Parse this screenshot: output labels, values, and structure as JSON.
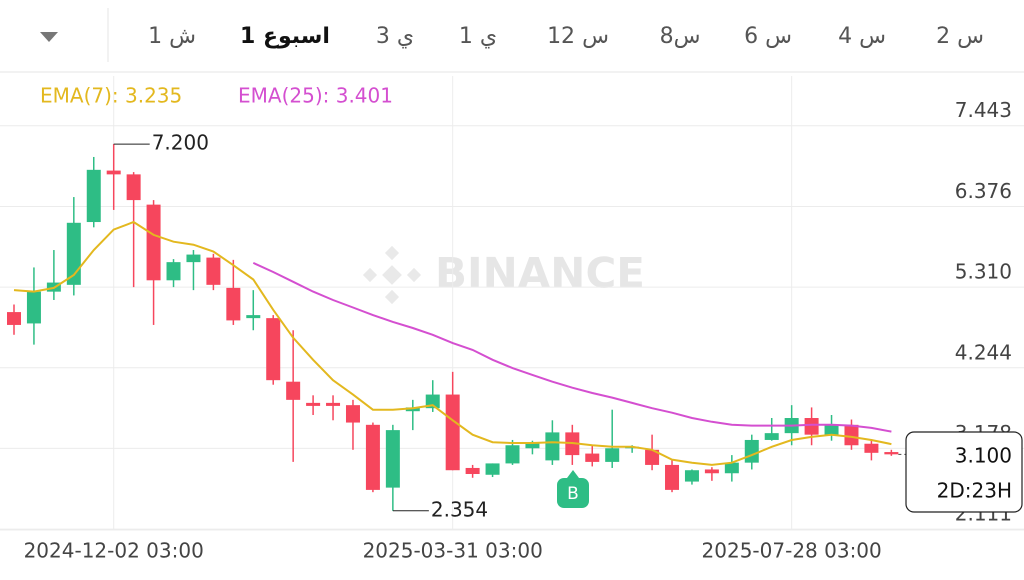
{
  "tabs": [
    {
      "label": "1 ش",
      "selected": false
    },
    {
      "label": "1 اسبوع",
      "selected": true
    },
    {
      "label": "3 ي",
      "selected": false
    },
    {
      "label": "1 ي",
      "selected": false
    },
    {
      "label": "12 س",
      "selected": false
    },
    {
      "label": "8س",
      "selected": false
    },
    {
      "label": "6 س",
      "selected": false
    },
    {
      "label": "4 س",
      "selected": false
    },
    {
      "label": "2 س",
      "selected": false
    }
  ],
  "chart_data": {
    "type": "candlestick",
    "watermark": "BINANCE",
    "categories": [
      null,
      null,
      null,
      null,
      null,
      "2024-12-02 03:00",
      null,
      null,
      null,
      null,
      null,
      null,
      null,
      null,
      null,
      null,
      null,
      null,
      null,
      null,
      null,
      null,
      "2025-03-31 03:00",
      null,
      null,
      null,
      null,
      null,
      null,
      null,
      null,
      null,
      null,
      null,
      null,
      null,
      null,
      null,
      null,
      "2025-07-28 03:00",
      null,
      null,
      null,
      null,
      null
    ],
    "open": [
      4.98,
      4.83,
      5.25,
      5.34,
      6.17,
      6.85,
      6.8,
      6.4,
      5.4,
      5.64,
      5.7,
      5.3,
      4.9,
      4.9,
      4.06,
      3.78,
      3.78,
      3.75,
      3.49,
      2.66,
      3.67,
      3.71,
      3.89,
      2.92,
      2.83,
      2.98,
      3.18,
      3.02,
      3.39,
      3.11,
      3.0,
      3.18,
      3.16,
      2.96,
      2.74,
      2.9,
      2.85,
      2.99,
      3.29,
      3.38,
      3.58,
      3.36,
      3.49,
      3.24,
      3.13
    ],
    "high": [
      5.08,
      5.57,
      5.8,
      6.5,
      7.03,
      7.2,
      6.83,
      6.46,
      5.68,
      5.8,
      5.75,
      5.67,
      5.27,
      4.94,
      4.74,
      3.88,
      3.88,
      3.82,
      3.52,
      3.49,
      3.82,
      4.08,
      4.19,
      2.96,
      2.98,
      3.29,
      3.28,
      3.55,
      3.49,
      3.22,
      3.69,
      3.22,
      3.36,
      3.02,
      2.9,
      2.93,
      3.09,
      3.36,
      3.58,
      3.75,
      3.72,
      3.62,
      3.56,
      3.3,
      3.16
    ],
    "low": [
      4.68,
      4.55,
      5.14,
      5.2,
      6.1,
      6.33,
      5.31,
      4.81,
      5.31,
      5.27,
      5.27,
      4.81,
      4.74,
      4.02,
      3.0,
      3.62,
      3.55,
      3.16,
      2.6,
      2.354,
      3.42,
      3.66,
      2.89,
      2.79,
      2.8,
      2.96,
      3.1,
      2.96,
      2.96,
      2.94,
      2.92,
      3.12,
      2.89,
      2.6,
      2.7,
      2.75,
      2.74,
      2.9,
      3.28,
      3.22,
      3.22,
      3.28,
      3.16,
      3.02,
      3.08
    ],
    "close": [
      4.81,
      5.25,
      5.37,
      6.16,
      6.86,
      6.8,
      6.46,
      5.4,
      5.64,
      5.74,
      5.34,
      4.87,
      4.94,
      4.08,
      3.82,
      3.74,
      3.74,
      3.52,
      2.63,
      3.42,
      3.72,
      3.89,
      2.89,
      2.84,
      2.98,
      3.22,
      3.25,
      3.39,
      3.09,
      3.0,
      3.18,
      3.2,
      2.96,
      2.63,
      2.89,
      2.85,
      2.99,
      3.29,
      3.38,
      3.58,
      3.36,
      3.49,
      3.22,
      3.12,
      3.1
    ],
    "up_color": "#2ebd85",
    "down_color": "#f6465d",
    "series": [
      {
        "name": "EMA(7): 3.235",
        "color": "#e3b81f",
        "values": [
          5.27,
          5.25,
          5.3,
          5.47,
          5.8,
          6.07,
          6.17,
          6.0,
          5.91,
          5.87,
          5.78,
          5.6,
          5.41,
          5.01,
          4.64,
          4.35,
          4.08,
          3.89,
          3.69,
          3.69,
          3.71,
          3.75,
          3.55,
          3.36,
          3.26,
          3.25,
          3.25,
          3.26,
          3.25,
          3.22,
          3.2,
          3.2,
          3.16,
          3.03,
          2.99,
          2.96,
          2.99,
          3.09,
          3.2,
          3.29,
          3.33,
          3.36,
          3.33,
          3.29,
          3.235
        ]
      },
      {
        "name": "EMA(25): 3.401",
        "color": "#d44fd0",
        "values": [
          null,
          null,
          null,
          null,
          null,
          null,
          null,
          null,
          null,
          null,
          null,
          null,
          5.63,
          5.51,
          5.38,
          5.25,
          5.14,
          5.04,
          4.94,
          4.85,
          4.77,
          4.68,
          4.57,
          4.48,
          4.35,
          4.24,
          4.15,
          4.06,
          3.98,
          3.91,
          3.85,
          3.78,
          3.71,
          3.65,
          3.58,
          3.53,
          3.49,
          3.48,
          3.48,
          3.48,
          3.49,
          3.49,
          3.48,
          3.45,
          3.401
        ]
      }
    ],
    "high_label": "7.200",
    "low_label": "2.354",
    "last_price_label": "3.100",
    "countdown": "2D:23H",
    "trade_marker": "B",
    "ylim": [
      2.1,
      8.1
    ],
    "yticks": [
      7.443,
      6.376,
      {
        "value": 5.31,
        "label": "5.310"
      },
      4.244,
      3.178,
      2.111
    ],
    "grid": true
  }
}
